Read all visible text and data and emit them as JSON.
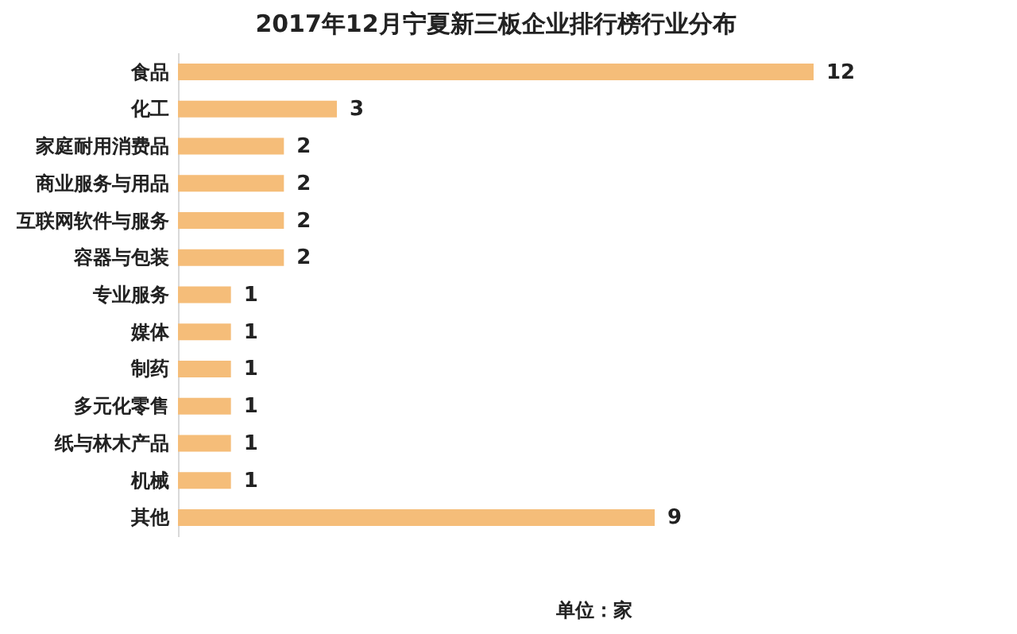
{
  "chart_data": {
    "type": "bar",
    "orientation": "horizontal",
    "title": "2017年12月宁夏新三板企业排行榜行业分布",
    "categories": [
      "食品",
      "化工",
      "家庭耐用消费品",
      "商业服务与用品",
      "互联网软件与服务",
      "容器与包装",
      "专业服务",
      "媒体",
      "制药",
      "多元化零售",
      "纸与林木产品",
      "机械",
      "其他"
    ],
    "values": [
      12,
      3,
      2,
      2,
      2,
      2,
      1,
      1,
      1,
      1,
      1,
      1,
      9
    ],
    "color": "#f5bd79",
    "data_labels": true,
    "annotations": [
      "单位：家"
    ]
  }
}
